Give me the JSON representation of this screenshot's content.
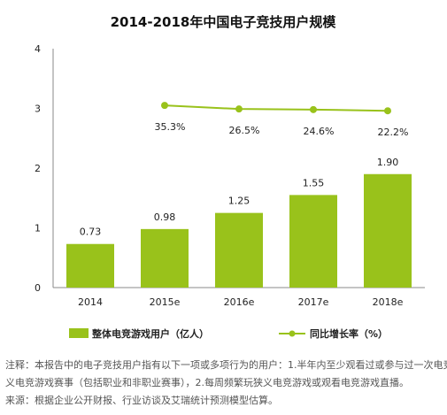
{
  "chart_data": {
    "type": "bar",
    "title": "2014-2018年中国电子竞技用户规模",
    "categories": [
      "2014",
      "2015e",
      "2016e",
      "2017e",
      "2018e"
    ],
    "ylim": [
      0,
      4
    ],
    "yticks": [
      "0",
      "1",
      "2",
      "3",
      "4"
    ],
    "series": [
      {
        "name": "整体电竞游戏用户（亿人）",
        "type": "bar",
        "values": [
          0.73,
          0.98,
          1.25,
          1.55,
          1.9
        ],
        "labels": [
          "0.73",
          "0.98",
          "1.25",
          "1.55",
          "1.90"
        ],
        "color": "#99c21b"
      },
      {
        "name": "同比增长率（%）",
        "type": "line",
        "x": [
          "2015e",
          "2016e",
          "2017e",
          "2018e"
        ],
        "values": [
          35.3,
          26.5,
          24.6,
          22.2
        ],
        "plot_on_axis_units": [
          3.05,
          2.99,
          2.98,
          2.96
        ],
        "labels": [
          "35.3%",
          "26.5%",
          "24.6%",
          "22.2%"
        ],
        "color": "#99c21b"
      }
    ],
    "grid": false,
    "legend_position": "bottom"
  },
  "notes": [
    "注释：本报告中的电子竞技用户指有以下一项或多项行为的用户：1.半年内至少观看过或参与过一次电竞",
    "义电竞游戏赛事（包括职业和非职业赛事），2.每周频繁玩狭义电竞游戏或观看电竞游戏直播。",
    "来源：根据企业公开财报、行业访谈及艾瑞统计预测模型估算。"
  ]
}
